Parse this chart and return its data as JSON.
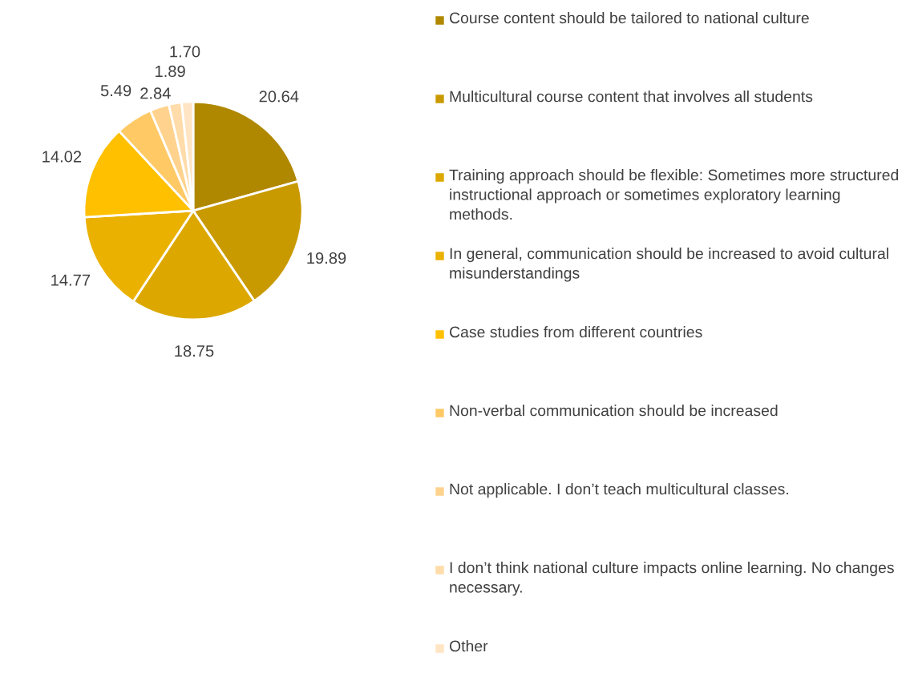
{
  "chart_data": {
    "type": "pie",
    "categories": [
      "Course content should be tailored to national culture",
      "Multicultural course content that involves all students",
      "Training approach should be flexible: Sometimes more structured instructional approach or sometimes exploratory learning methods.",
      "In general, communication should be increased to avoid cultural misunderstandings",
      "Case studies from different countries",
      "Non-verbal communication should be increased",
      "Not applicable. I don’t teach multicultural classes.",
      "I don’t think national culture impacts online learning. No changes necessary.",
      "Other"
    ],
    "values": [
      20.64,
      19.89,
      18.75,
      14.77,
      14.02,
      5.49,
      2.84,
      1.89,
      1.7
    ],
    "colors": [
      "#b08800",
      "#c99a00",
      "#dca800",
      "#ebb100",
      "#ffc000",
      "#ffc966",
      "#ffd38e",
      "#ffdcaa",
      "#ffe5c4"
    ],
    "value_labels": [
      "20.64",
      "19.89",
      "18.75",
      "14.77",
      "14.02",
      "5.49",
      "2.84",
      "1.89",
      "1.70"
    ],
    "legend": "right"
  }
}
